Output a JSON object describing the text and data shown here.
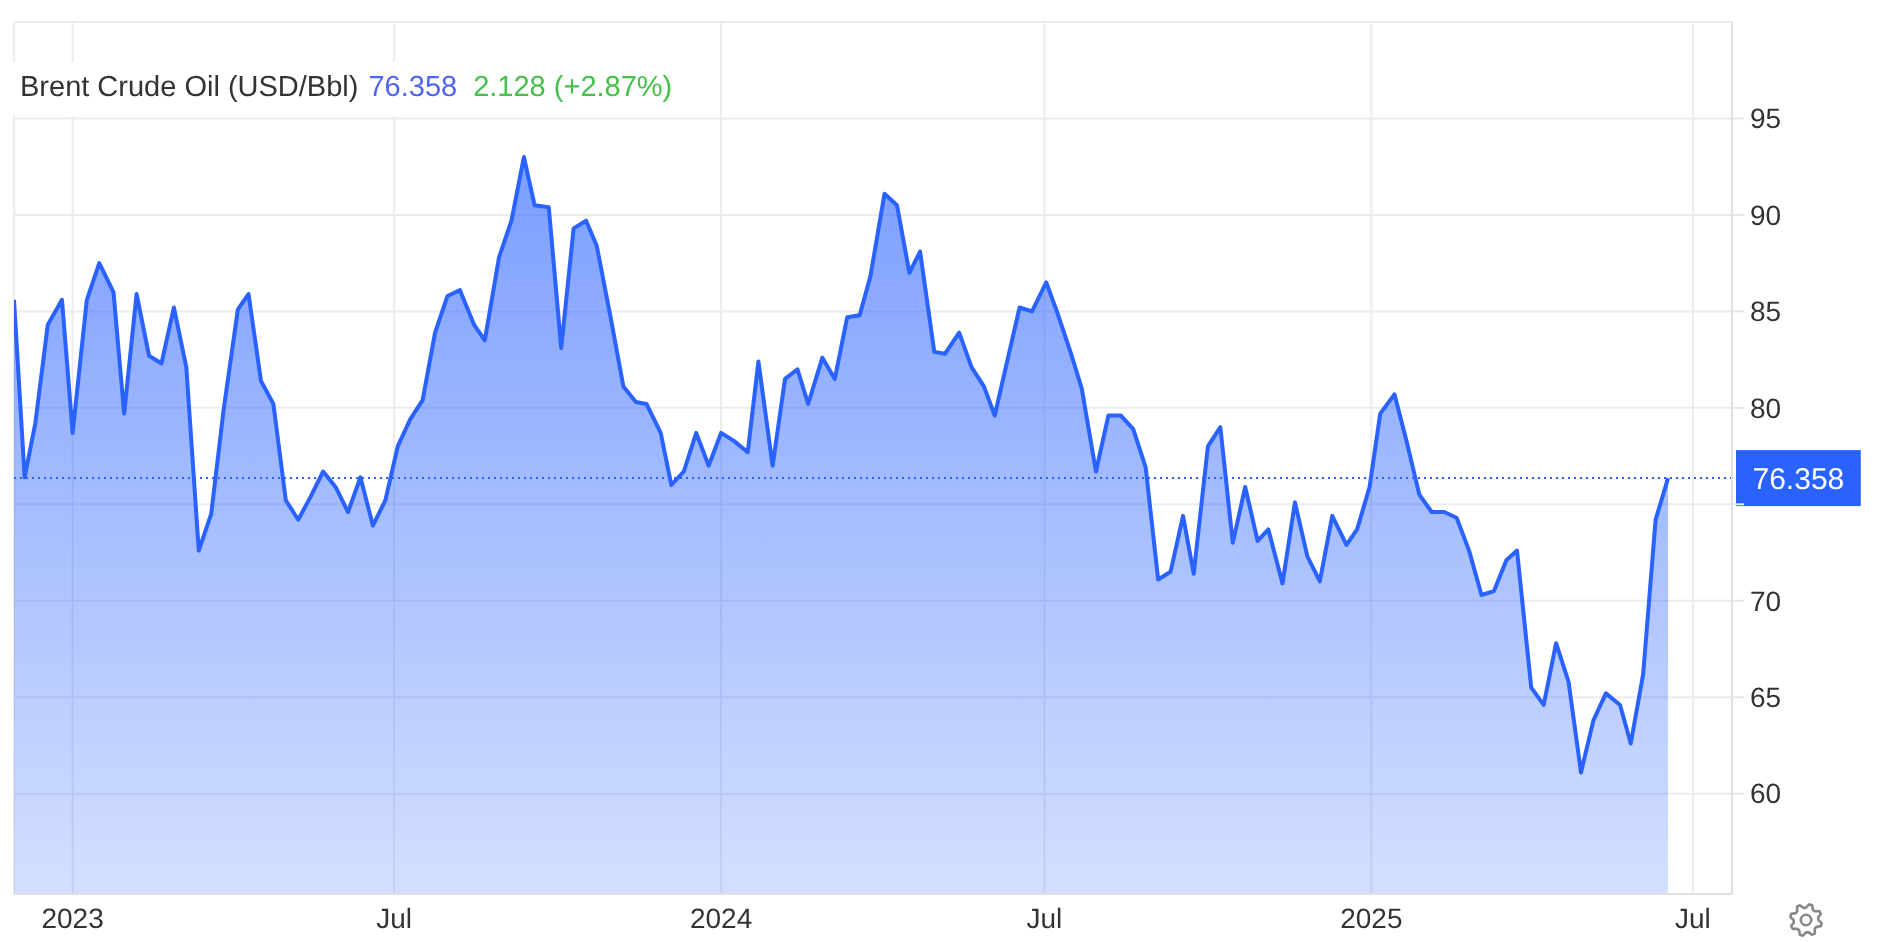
{
  "chart_data": {
    "type": "area",
    "title": "Brent Crude Oil (USD/Bbl)",
    "annotations": [
      "76.358",
      "2.128 (+2.87%)"
    ],
    "x": [
      "2022-11-29",
      "2022-12-05",
      "2022-12-11",
      "2022-12-18",
      "2022-12-26",
      "2023-01-01",
      "2023-01-09",
      "2023-01-16",
      "2023-01-24",
      "2023-01-30",
      "2023-02-06",
      "2023-02-13",
      "2023-02-20",
      "2023-02-27",
      "2023-03-06",
      "2023-03-13",
      "2023-03-20",
      "2023-03-27",
      "2023-04-04",
      "2023-04-10",
      "2023-04-17",
      "2023-04-24",
      "2023-05-01",
      "2023-05-08",
      "2023-05-15",
      "2023-05-22",
      "2023-05-29",
      "2023-06-05",
      "2023-06-12",
      "2023-06-19",
      "2023-06-26",
      "2023-07-03",
      "2023-07-10",
      "2023-07-17",
      "2023-07-24",
      "2023-07-31",
      "2023-08-07",
      "2023-08-15",
      "2023-08-21",
      "2023-08-29",
      "2023-09-05",
      "2023-09-12",
      "2023-09-18",
      "2023-09-26",
      "2023-10-03",
      "2023-10-10",
      "2023-10-17",
      "2023-10-23",
      "2023-10-31",
      "2023-11-07",
      "2023-11-14",
      "2023-11-20",
      "2023-11-28",
      "2023-12-04",
      "2023-12-11",
      "2023-12-18",
      "2023-12-25",
      "2024-01-01",
      "2024-01-08",
      "2024-01-16",
      "2024-01-22",
      "2024-01-30",
      "2024-02-06",
      "2024-02-13",
      "2024-02-19",
      "2024-02-27",
      "2024-03-05",
      "2024-03-12",
      "2024-03-19",
      "2024-03-25",
      "2024-04-02",
      "2024-04-09",
      "2024-04-16",
      "2024-04-22",
      "2024-04-30",
      "2024-05-06",
      "2024-05-14",
      "2024-05-21",
      "2024-05-28",
      "2024-06-03",
      "2024-06-10",
      "2024-06-17",
      "2024-06-24",
      "2024-07-02",
      "2024-07-08",
      "2024-07-16",
      "2024-07-22",
      "2024-07-30",
      "2024-08-06",
      "2024-08-13",
      "2024-08-20",
      "2024-08-27",
      "2024-09-03",
      "2024-09-10",
      "2024-09-17",
      "2024-09-23",
      "2024-10-01",
      "2024-10-08",
      "2024-10-15",
      "2024-10-22",
      "2024-10-29",
      "2024-11-04",
      "2024-11-12",
      "2024-11-19",
      "2024-11-26",
      "2024-12-03",
      "2024-12-10",
      "2024-12-18",
      "2024-12-24",
      "2024-12-31",
      "2025-01-06",
      "2025-01-14",
      "2025-01-21",
      "2025-01-28",
      "2025-02-04",
      "2025-02-11",
      "2025-02-18",
      "2025-02-25",
      "2025-03-04",
      "2025-03-11",
      "2025-03-18",
      "2025-03-24",
      "2025-04-01",
      "2025-04-08",
      "2025-04-15",
      "2025-04-22",
      "2025-04-29",
      "2025-05-06",
      "2025-05-13",
      "2025-05-21",
      "2025-05-27",
      "2025-06-03",
      "2025-06-10",
      "2025-06-17"
    ],
    "values": [
      85.6,
      76.4,
      79.2,
      84.3,
      85.6,
      78.7,
      85.6,
      87.5,
      86.0,
      79.7,
      85.9,
      82.7,
      82.3,
      85.2,
      82.1,
      72.6,
      74.5,
      79.9,
      85.1,
      85.9,
      81.4,
      80.2,
      75.2,
      74.2,
      75.4,
      76.7,
      75.9,
      74.6,
      76.4,
      73.9,
      75.2,
      78.0,
      79.4,
      80.4,
      83.9,
      85.8,
      86.1,
      84.3,
      83.5,
      87.8,
      89.7,
      93.0,
      90.5,
      90.4,
      83.1,
      89.3,
      89.7,
      88.4,
      84.6,
      81.1,
      80.3,
      80.2,
      78.7,
      76.0,
      76.7,
      78.7,
      77.0,
      78.7,
      78.3,
      77.7,
      82.4,
      77.0,
      81.5,
      82.0,
      80.2,
      82.6,
      81.5,
      84.7,
      84.8,
      86.8,
      91.1,
      90.5,
      87.0,
      88.1,
      82.9,
      82.8,
      83.9,
      82.1,
      81.1,
      79.6,
      82.4,
      85.2,
      85.0,
      86.5,
      85.0,
      82.8,
      81.0,
      76.7,
      79.6,
      79.6,
      78.9,
      76.9,
      71.1,
      71.5,
      74.4,
      71.4,
      78.0,
      79.0,
      73.0,
      75.9,
      73.1,
      73.7,
      70.9,
      75.1,
      72.3,
      71.0,
      74.4,
      72.9,
      73.7,
      75.9,
      79.7,
      80.7,
      78.2,
      75.5,
      74.6,
      74.6,
      74.3,
      72.6,
      70.3,
      70.5,
      72.1,
      72.6,
      65.5,
      64.6,
      67.8,
      65.8,
      61.1,
      63.8,
      65.2,
      64.6,
      62.6,
      66.2,
      74.2,
      76.358
    ],
    "color": "#2962ff",
    "xlim": [
      "2022-11-29",
      "2025-07-23"
    ],
    "xticks": [
      {
        "value": "2023-01-01",
        "label": "2023"
      },
      {
        "value": "2023-07-01",
        "label": "Jul"
      },
      {
        "value": "2024-01-01",
        "label": "2024"
      },
      {
        "value": "2024-07-01",
        "label": "Jul"
      },
      {
        "value": "2025-01-01",
        "label": "2025"
      },
      {
        "value": "2025-07-01",
        "label": "Jul"
      }
    ],
    "ylim": [
      54.8,
      100
    ],
    "yticks": [
      60,
      65,
      70,
      {
        "value": 75,
        "label": null
      },
      80,
      85,
      90,
      95
    ],
    "ref_lines": [
      {
        "axis": "y",
        "value": 76.358,
        "label": "76.358",
        "color": "#2962ff",
        "line_style": "dotted"
      }
    ],
    "grid": true
  }
}
